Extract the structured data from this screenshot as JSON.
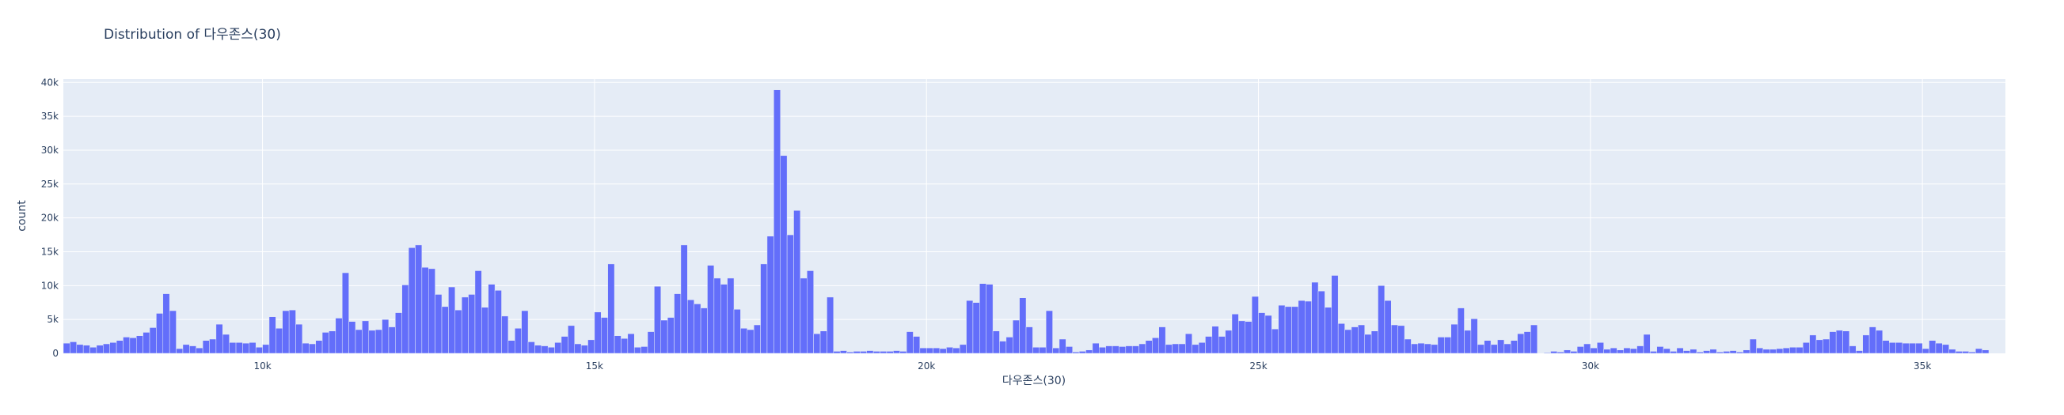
{
  "chart_data": {
    "type": "bar",
    "title": "Distribution of 다우존스(30)",
    "xlabel": "다우존스(30)",
    "ylabel": "count",
    "xlim": [
      7000,
      36250
    ],
    "ylim": [
      0,
      40500
    ],
    "bin_start": 7000,
    "bin_width": 100,
    "x_ticks": [
      {
        "value": 10000,
        "label": "10k"
      },
      {
        "value": 15000,
        "label": "15k"
      },
      {
        "value": 20000,
        "label": "20k"
      },
      {
        "value": 25000,
        "label": "25k"
      },
      {
        "value": 30000,
        "label": "30k"
      },
      {
        "value": 35000,
        "label": "35k"
      }
    ],
    "y_ticks": [
      {
        "value": 0,
        "label": "0"
      },
      {
        "value": 5000,
        "label": "5k"
      },
      {
        "value": 10000,
        "label": "10k"
      },
      {
        "value": 15000,
        "label": "15k"
      },
      {
        "value": 20000,
        "label": "20k"
      },
      {
        "value": 25000,
        "label": "25k"
      },
      {
        "value": 30000,
        "label": "30k"
      },
      {
        "value": 35000,
        "label": "35k"
      },
      {
        "value": 40000,
        "label": "40k"
      }
    ],
    "values": [
      1500,
      1700,
      1300,
      1200,
      900,
      1200,
      1400,
      1600,
      1900,
      2400,
      2300,
      2600,
      3100,
      3800,
      5900,
      8800,
      6300,
      700,
      1300,
      1100,
      800,
      1900,
      2100,
      4300,
      2800,
      1600,
      1600,
      1500,
      1600,
      900,
      1300,
      5400,
      3700,
      6300,
      6400,
      4300,
      1500,
      1400,
      1900,
      3100,
      3300,
      5200,
      11900,
      4700,
      3500,
      4800,
      3400,
      3500,
      5000,
      3900,
      6000,
      10100,
      15600,
      16000,
      12700,
      12500,
      8700,
      6900,
      9800,
      6400,
      8300,
      8700,
      12200,
      6800,
      10200,
      9300,
      5500,
      1900,
      3700,
      6300,
      1700,
      1200,
      1100,
      900,
      1600,
      2500,
      4100,
      1400,
      1200,
      2000,
      6100,
      5300,
      13200,
      2600,
      2200,
      2900,
      900,
      1000,
      3200,
      9900,
      4900,
      5300,
      8800,
      16000,
      7900,
      7300,
      6700,
      13000,
      11100,
      10200,
      11100,
      6500,
      3700,
      3500,
      4200,
      13200,
      17300,
      38900,
      29200,
      17500,
      21100,
      11100,
      12200,
      2900,
      3300,
      8300,
      300,
      400,
      200,
      300,
      300,
      400,
      300,
      300,
      300,
      400,
      300,
      3200,
      2500,
      800,
      800,
      800,
      700,
      900,
      800,
      1300,
      7800,
      7500,
      10300,
      10200,
      3300,
      1800,
      2400,
      4900,
      8200,
      3900,
      900,
      900,
      6300,
      800,
      2100,
      1000,
      200,
      300,
      500,
      1500,
      900,
      1100,
      1100,
      1000,
      1100,
      1100,
      1400,
      1900,
      2300,
      3900,
      1300,
      1400,
      1400,
      2900,
      1300,
      1600,
      2500,
      4000,
      2500,
      3400,
      5800,
      4800,
      4700,
      8400,
      6000,
      5600,
      3600,
      7100,
      6900,
      6900,
      7800,
      7700,
      10500,
      9200,
      6800,
      11500,
      4400,
      3500,
      3900,
      4200,
      2800,
      3300,
      10000,
      7800,
      4200,
      4100,
      2100,
      1400,
      1500,
      1400,
      1300,
      2400,
      2400,
      4300,
      6700,
      3400,
      5100,
      1300,
      1900,
      1300,
      2000,
      1400,
      1900,
      2900,
      3200,
      4200,
      0,
      100,
      300,
      200,
      500,
      300,
      1000,
      1400,
      800,
      1600,
      600,
      800,
      500,
      800,
      700,
      1100,
      2800,
      300,
      1000,
      700,
      300,
      800,
      400,
      600,
      200,
      400,
      600,
      200,
      300,
      400,
      200,
      500,
      2100,
      800,
      600,
      600,
      700,
      800,
      900,
      900,
      1600,
      2700,
      2000,
      2100,
      3200,
      3400,
      3300,
      1100,
      400,
      2700,
      3900,
      3400,
      1900,
      1600,
      1600,
      1500,
      1500,
      1500,
      700,
      1900,
      1500,
      1300,
      600,
      300,
      300,
      200,
      700,
      500
    ]
  }
}
